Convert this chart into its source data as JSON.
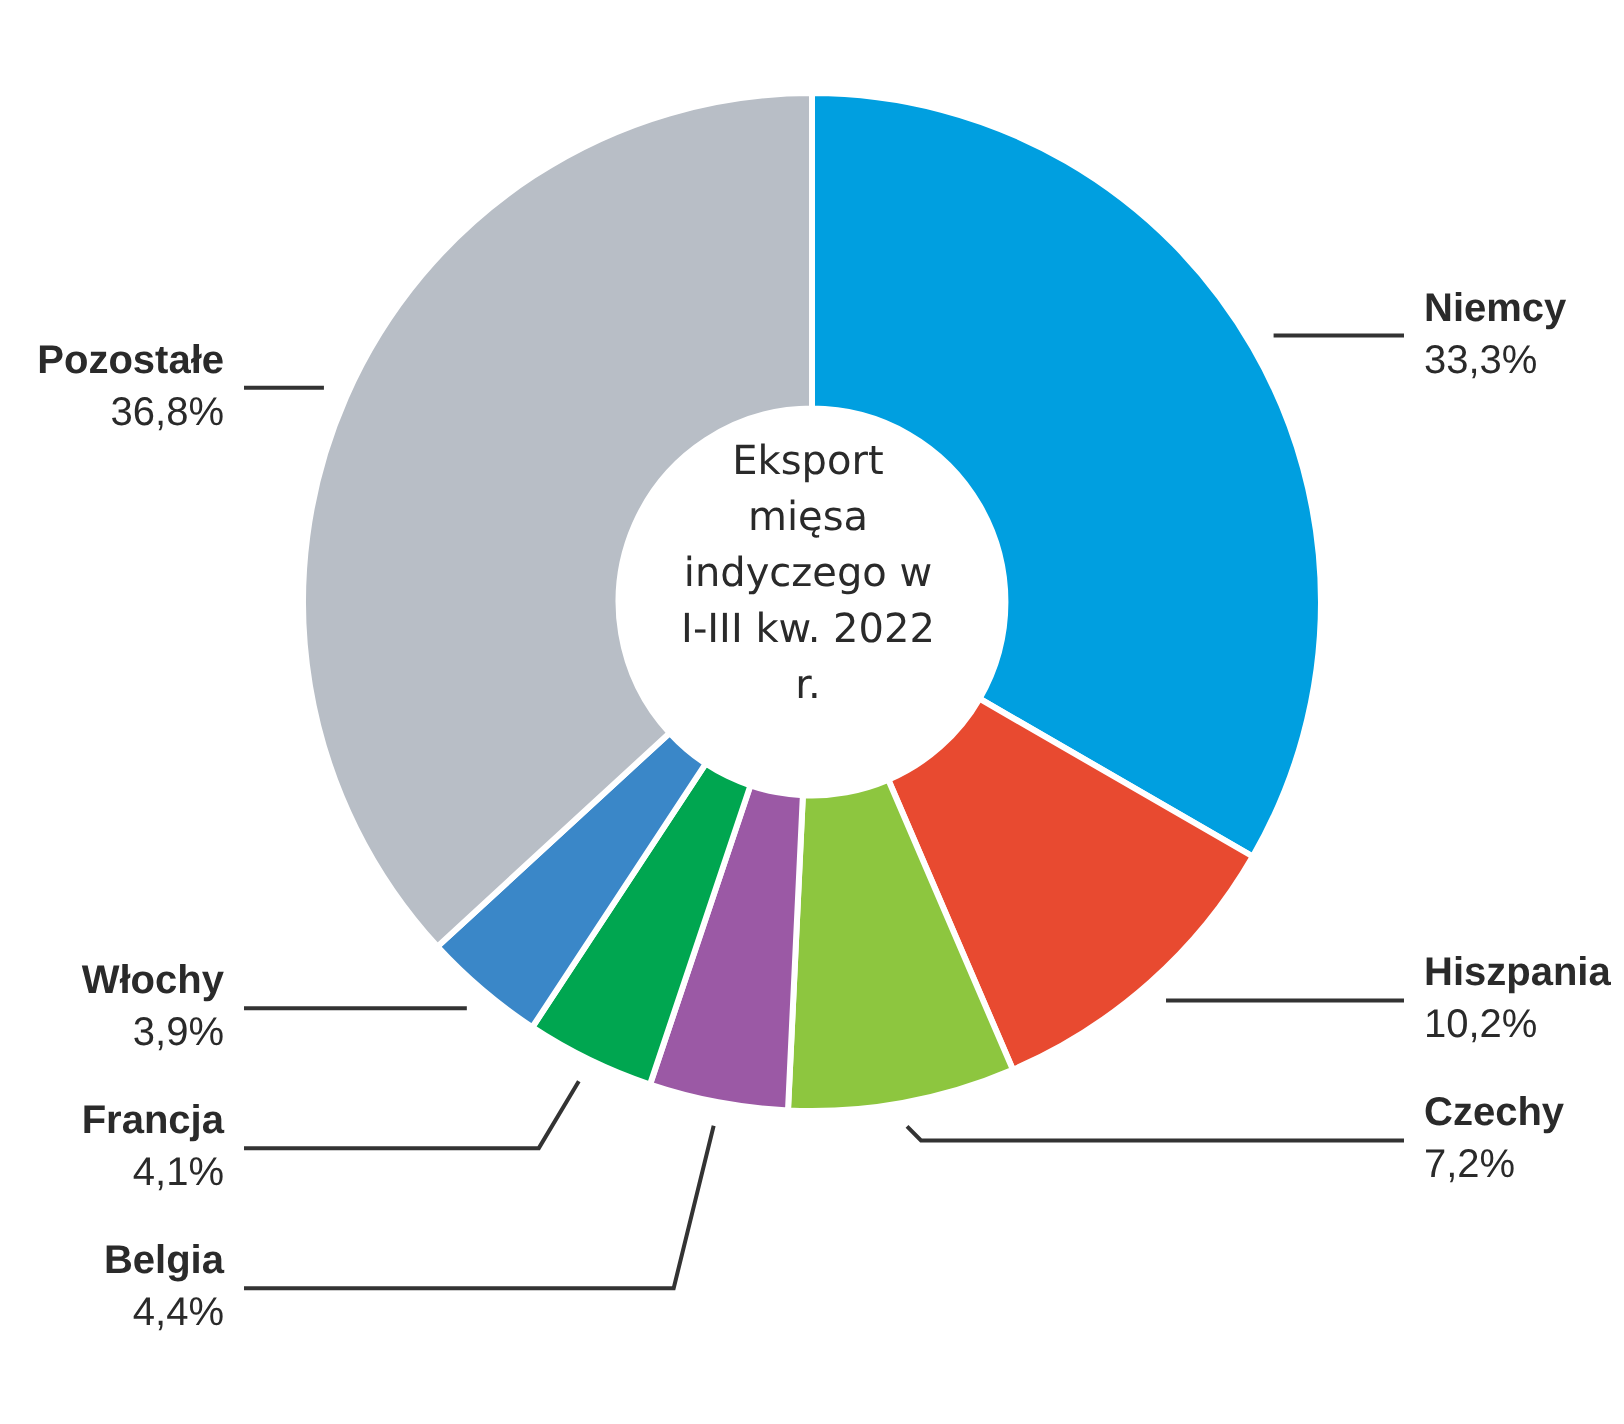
{
  "chart_data": {
    "type": "donut",
    "title": "Eksport mięsa indyczego w I-III kw. 2022 r.",
    "categories": [
      "Niemcy",
      "Hiszpania",
      "Czechy",
      "Belgia",
      "Francja",
      "Włochy",
      "Pozostałe"
    ],
    "values": [
      33.3,
      10.2,
      7.2,
      4.4,
      4.1,
      3.9,
      36.8
    ],
    "value_labels": [
      "33,3%",
      "10,2%",
      "7,2%",
      "4,4%",
      "4,1%",
      "3,9%",
      "36,8%"
    ],
    "colors": [
      "#009fe0",
      "#e84a30",
      "#8dc63f",
      "#9b59a5",
      "#00a650",
      "#3a87c8",
      "#b8bec6"
    ],
    "legend": false
  }
}
